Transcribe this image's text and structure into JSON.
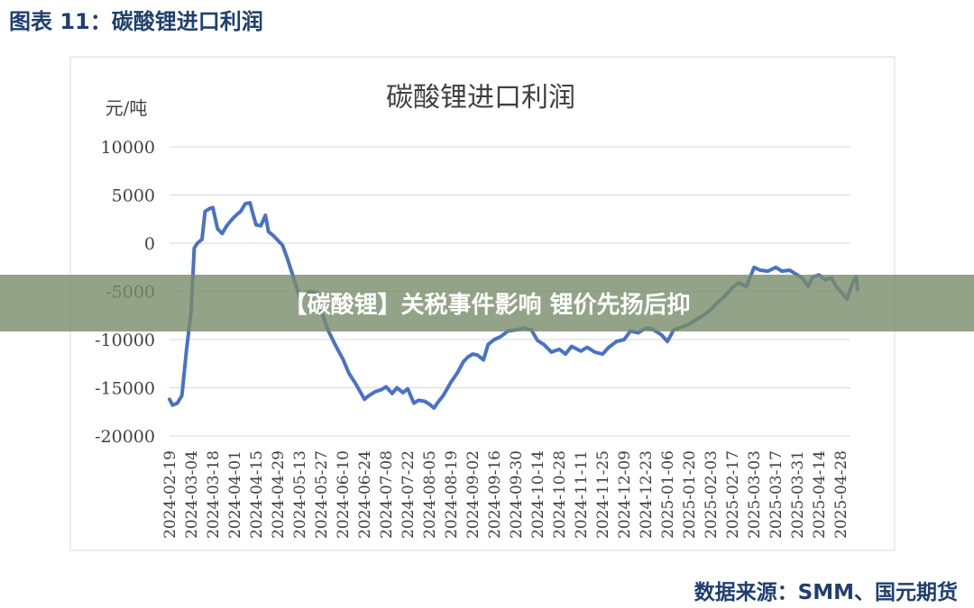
{
  "figure_caption": "图表 11：碳酸锂进口利润",
  "source_note": "数据来源：SMM、国元期货",
  "banner_text": "【碳酸锂】关税事件影响 锂价先扬后抑",
  "colors": {
    "line": "#4a72c4",
    "caption": "#1f3f6f",
    "banner": "#7a8c69",
    "grid": "#d9d9d9"
  },
  "chart_data": {
    "type": "line",
    "title": "碳酸锂进口利润",
    "ylabel": "元/吨",
    "xlabel": "",
    "ylim": [
      -20000,
      10000
    ],
    "yticks": [
      10000,
      5000,
      0,
      -5000,
      -10000,
      -15000,
      -20000
    ],
    "ytick_labels": [
      "10000",
      "5000",
      "0",
      "-5000",
      "-10000",
      "-15000",
      "-20000"
    ],
    "xtick_labels": [
      "2024-02-19",
      "2024-03-04",
      "2024-03-18",
      "2024-04-01",
      "2024-04-15",
      "2024-04-29",
      "2024-05-13",
      "2024-05-27",
      "2024-06-10",
      "2024-06-24",
      "2024-07-08",
      "2024-07-22",
      "2024-08-05",
      "2024-08-19",
      "2024-09-02",
      "2024-09-16",
      "2024-09-30",
      "2024-10-14",
      "2024-10-28",
      "2024-11-11",
      "2024-11-25",
      "2024-12-09",
      "2024-12-23",
      "2025-01-06",
      "2025-01-20",
      "2025-02-03",
      "2025-02-17",
      "2025-03-03",
      "2025-03-17",
      "2025-03-31",
      "2025-04-14",
      "2025-04-28"
    ],
    "grid": true,
    "legend": "none",
    "series": [
      {
        "x": [
          "2024-02-19",
          "2024-02-21",
          "2024-02-24",
          "2024-02-27",
          "2024-03-01",
          "2024-03-04",
          "2024-03-06",
          "2024-03-08",
          "2024-03-11",
          "2024-03-13",
          "2024-03-16",
          "2024-03-18",
          "2024-03-21",
          "2024-03-24",
          "2024-03-27",
          "2024-03-30",
          "2024-04-02",
          "2024-04-05",
          "2024-04-08",
          "2024-04-11",
          "2024-04-13",
          "2024-04-15",
          "2024-04-18",
          "2024-04-21",
          "2024-04-23",
          "2024-04-26",
          "2024-04-29",
          "2024-05-02",
          "2024-05-05",
          "2024-05-08",
          "2024-05-11",
          "2024-05-13",
          "2024-05-16",
          "2024-05-20",
          "2024-05-25",
          "2024-05-27",
          "2024-06-01",
          "2024-06-05",
          "2024-06-10",
          "2024-06-14",
          "2024-06-18",
          "2024-06-22",
          "2024-06-24",
          "2024-06-27",
          "2024-07-01",
          "2024-07-05",
          "2024-07-08",
          "2024-07-12",
          "2024-07-15",
          "2024-07-19",
          "2024-07-22",
          "2024-07-26",
          "2024-07-29",
          "2024-08-02",
          "2024-08-05",
          "2024-08-08",
          "2024-08-11",
          "2024-08-14",
          "2024-08-19",
          "2024-08-23",
          "2024-08-27",
          "2024-08-30",
          "2024-09-02",
          "2024-09-05",
          "2024-09-09",
          "2024-09-12",
          "2024-09-16",
          "2024-09-20",
          "2024-09-25",
          "2024-09-30",
          "2024-10-05",
          "2024-10-10",
          "2024-10-14",
          "2024-10-18",
          "2024-10-23",
          "2024-10-28",
          "2024-11-01",
          "2024-11-05",
          "2024-11-11",
          "2024-11-15",
          "2024-11-20",
          "2024-11-25",
          "2024-11-29",
          "2024-12-04",
          "2024-12-09",
          "2024-12-13",
          "2024-12-18",
          "2024-12-23",
          "2024-12-27",
          "2025-01-02",
          "2025-01-06",
          "2025-01-10",
          "2025-01-15",
          "2025-01-20",
          "2025-01-25",
          "2025-01-29",
          "2025-02-03",
          "2025-02-07",
          "2025-02-12",
          "2025-02-17",
          "2025-02-21",
          "2025-02-26",
          "2025-03-03",
          "2025-03-07",
          "2025-03-12",
          "2025-03-17",
          "2025-03-21",
          "2025-03-26",
          "2025-03-31",
          "2025-04-03",
          "2025-04-07",
          "2025-04-10",
          "2025-04-14",
          "2025-04-18",
          "2025-04-22",
          "2025-04-25",
          "2025-04-28",
          "2025-05-02",
          "2025-05-06",
          "2025-05-08",
          "2025-05-09"
        ],
        "values": [
          -16200,
          -16800,
          -16600,
          -15800,
          -11000,
          -7000,
          -500,
          0,
          400,
          3300,
          3600,
          3700,
          1500,
          1000,
          1800,
          2400,
          2900,
          3300,
          4100,
          4200,
          3000,
          1900,
          1800,
          2900,
          1200,
          800,
          300,
          -200,
          -1500,
          -3000,
          -4500,
          -5500,
          -5200,
          -5000,
          -5200,
          -7000,
          -9200,
          -10500,
          -12000,
          -13500,
          -14500,
          -15600,
          -16200,
          -15800,
          -15400,
          -15200,
          -14900,
          -15600,
          -15000,
          -15500,
          -15100,
          -16600,
          -16300,
          -16400,
          -16700,
          -17100,
          -16400,
          -15800,
          -14400,
          -13500,
          -12300,
          -11800,
          -11500,
          -11600,
          -12100,
          -10500,
          -10000,
          -9700,
          -9100,
          -9000,
          -8800,
          -9000,
          -10100,
          -10500,
          -11300,
          -11000,
          -11500,
          -10700,
          -11200,
          -10800,
          -11300,
          -11500,
          -10800,
          -10200,
          -10000,
          -9100,
          -9300,
          -8800,
          -8900,
          -9500,
          -10200,
          -9000,
          -8700,
          -8400,
          -7900,
          -7500,
          -6900,
          -6200,
          -5500,
          -4600,
          -4100,
          -4500,
          -2500,
          -2800,
          -2900,
          -2500,
          -2900,
          -2800,
          -3300,
          -3600,
          -4500,
          -3500,
          -3300,
          -3800,
          -3600,
          -4500,
          -5000,
          -5800,
          -4000,
          -3500,
          -4800
        ]
      }
    ]
  }
}
